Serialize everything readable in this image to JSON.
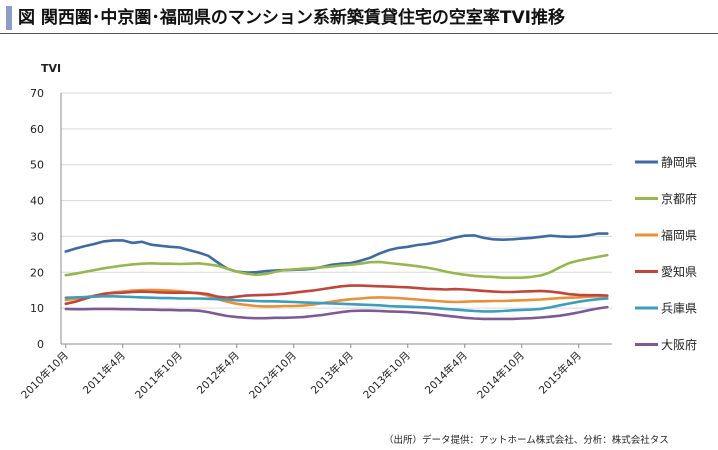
{
  "header": {
    "title": "図 関西圏･中京圏･福岡県のマンション系新築賃貸住宅の空室率TVI推移"
  },
  "footer": {
    "source": "（出所）データ提供：アットホーム株式会社、分析：株式会社タス"
  },
  "colors": {
    "title_accent": "#8e9cc9",
    "gridline": "#d9d9d9",
    "axis": "#8c8c8c"
  },
  "chart_data": {
    "type": "line",
    "title": "",
    "xlabel": "",
    "ylabel": "TVI",
    "ylim": [
      0,
      70
    ],
    "yticks": [
      0,
      10,
      20,
      30,
      40,
      50,
      60,
      70
    ],
    "grid": true,
    "legend_position": "right",
    "x": [
      "2010-10",
      "2010-11",
      "2010-12",
      "2011-01",
      "2011-02",
      "2011-03",
      "2011-04",
      "2011-05",
      "2011-06",
      "2011-07",
      "2011-08",
      "2011-09",
      "2011-10",
      "2011-11",
      "2011-12",
      "2012-01",
      "2012-02",
      "2012-03",
      "2012-04",
      "2012-05",
      "2012-06",
      "2012-07",
      "2012-08",
      "2012-09",
      "2012-10",
      "2012-11",
      "2012-12",
      "2013-01",
      "2013-02",
      "2013-03",
      "2013-04",
      "2013-05",
      "2013-06",
      "2013-07",
      "2013-08",
      "2013-09",
      "2013-10",
      "2013-11",
      "2013-12",
      "2014-01",
      "2014-02",
      "2014-03",
      "2014-04",
      "2014-05",
      "2014-06",
      "2014-07",
      "2014-08",
      "2014-09",
      "2014-10",
      "2014-11",
      "2014-12",
      "2015-01",
      "2015-02",
      "2015-03",
      "2015-04",
      "2015-05",
      "2015-06",
      "2015-07"
    ],
    "x_tick_labels": [
      "2010年10月",
      "2011年4月",
      "2011年10月",
      "2012年4月",
      "2012年10月",
      "2013年4月",
      "2013年10月",
      "2014年4月",
      "2014年10月",
      "2015年4月"
    ],
    "x_tick_values": [
      "2010-10",
      "2011-04",
      "2011-10",
      "2012-04",
      "2012-10",
      "2013-04",
      "2013-10",
      "2014-04",
      "2014-10",
      "2015-04"
    ],
    "series": [
      {
        "name": "静岡県",
        "color": "#3f6aa2",
        "values": [
          25.8,
          26.6,
          27.3,
          27.9,
          28.6,
          28.9,
          28.9,
          28.2,
          28.5,
          27.7,
          27.4,
          27.1,
          26.9,
          26.2,
          25.5,
          24.6,
          22.7,
          21.0,
          20.2,
          19.9,
          20.0,
          20.3,
          20.5,
          20.6,
          20.7,
          20.8,
          21.0,
          21.5,
          22.1,
          22.4,
          22.6,
          23.2,
          24.0,
          25.2,
          26.2,
          26.8,
          27.1,
          27.6,
          27.9,
          28.4,
          29.0,
          29.7,
          30.2,
          30.3,
          29.6,
          29.2,
          29.1,
          29.2,
          29.4,
          29.6,
          29.9,
          30.2,
          30.0,
          29.9,
          30.0,
          30.3,
          30.8,
          30.8
        ]
      },
      {
        "name": "京都府",
        "color": "#96b650",
        "values": [
          19.2,
          19.6,
          20.1,
          20.6,
          21.1,
          21.5,
          21.9,
          22.2,
          22.4,
          22.5,
          22.4,
          22.4,
          22.3,
          22.4,
          22.5,
          22.2,
          21.8,
          21.0,
          20.2,
          19.6,
          19.3,
          19.5,
          20.1,
          20.6,
          20.8,
          21.0,
          21.2,
          21.4,
          21.6,
          21.9,
          22.1,
          22.4,
          22.8,
          22.9,
          22.6,
          22.3,
          22.0,
          21.7,
          21.3,
          20.8,
          20.2,
          19.7,
          19.3,
          19.0,
          18.8,
          18.7,
          18.5,
          18.5,
          18.5,
          18.7,
          19.1,
          20.0,
          21.4,
          22.6,
          23.3,
          23.8,
          24.3,
          24.8
        ]
      },
      {
        "name": "福岡県",
        "color": "#e8913a",
        "values": [
          12.3,
          12.6,
          13.0,
          13.5,
          14.0,
          14.4,
          14.6,
          14.9,
          15.0,
          15.1,
          15.0,
          14.9,
          14.7,
          14.4,
          14.1,
          13.5,
          12.5,
          11.8,
          11.2,
          10.9,
          10.6,
          10.5,
          10.5,
          10.6,
          10.6,
          10.7,
          11.0,
          11.4,
          11.8,
          12.2,
          12.5,
          12.7,
          12.9,
          13.0,
          12.9,
          12.8,
          12.6,
          12.4,
          12.2,
          12.0,
          11.8,
          11.7,
          11.8,
          11.9,
          11.9,
          12.0,
          12.0,
          12.1,
          12.2,
          12.3,
          12.4,
          12.6,
          12.8,
          12.9,
          13.0,
          13.2,
          13.3,
          13.3
        ]
      },
      {
        "name": "愛知県",
        "color": "#c0463c",
        "values": [
          11.2,
          11.8,
          12.6,
          13.4,
          14.0,
          14.2,
          14.3,
          14.5,
          14.6,
          14.5,
          14.4,
          14.3,
          14.3,
          14.3,
          14.2,
          13.9,
          13.2,
          12.9,
          13.2,
          13.5,
          13.6,
          13.7,
          13.8,
          14.0,
          14.3,
          14.6,
          14.9,
          15.3,
          15.7,
          16.1,
          16.3,
          16.3,
          16.2,
          16.1,
          16.0,
          15.9,
          15.8,
          15.6,
          15.4,
          15.3,
          15.2,
          15.3,
          15.2,
          15.0,
          14.8,
          14.6,
          14.5,
          14.5,
          14.6,
          14.7,
          14.8,
          14.6,
          14.3,
          13.9,
          13.7,
          13.6,
          13.6,
          13.5
        ]
      },
      {
        "name": "兵庫県",
        "color": "#3d9dbb",
        "values": [
          12.9,
          13.0,
          13.1,
          13.2,
          13.3,
          13.3,
          13.2,
          13.1,
          13.0,
          12.9,
          12.8,
          12.8,
          12.7,
          12.7,
          12.7,
          12.6,
          12.5,
          12.4,
          12.2,
          12.1,
          12.0,
          11.9,
          11.9,
          11.8,
          11.7,
          11.6,
          11.5,
          11.4,
          11.3,
          11.2,
          11.1,
          11.0,
          10.9,
          10.8,
          10.6,
          10.5,
          10.4,
          10.3,
          10.2,
          10.0,
          9.8,
          9.6,
          9.4,
          9.2,
          9.1,
          9.1,
          9.2,
          9.4,
          9.5,
          9.6,
          9.8,
          10.2,
          10.8,
          11.3,
          11.8,
          12.2,
          12.5,
          12.7
        ]
      },
      {
        "name": "大阪府",
        "color": "#7e5a94",
        "values": [
          9.8,
          9.7,
          9.7,
          9.8,
          9.8,
          9.8,
          9.7,
          9.7,
          9.6,
          9.6,
          9.5,
          9.5,
          9.4,
          9.4,
          9.3,
          8.9,
          8.3,
          7.8,
          7.5,
          7.3,
          7.2,
          7.2,
          7.3,
          7.3,
          7.4,
          7.5,
          7.8,
          8.1,
          8.5,
          8.9,
          9.2,
          9.3,
          9.3,
          9.2,
          9.1,
          9.0,
          8.9,
          8.7,
          8.5,
          8.2,
          7.9,
          7.6,
          7.3,
          7.1,
          7.0,
          7.0,
          7.0,
          7.0,
          7.1,
          7.2,
          7.4,
          7.6,
          7.9,
          8.3,
          8.8,
          9.4,
          9.9,
          10.3
        ]
      }
    ]
  }
}
